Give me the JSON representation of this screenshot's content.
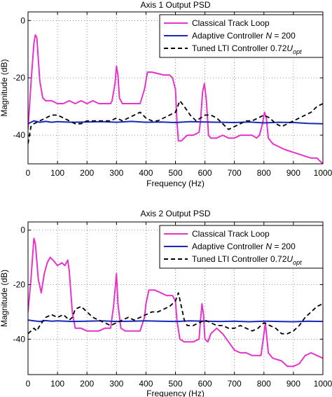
{
  "chart_data": [
    {
      "type": "line",
      "title": "Axis 1 Output PSD",
      "xlabel": "Frequency (Hz)",
      "ylabel": "Magnitude (dB)",
      "xlim": [
        0,
        1000
      ],
      "ylim": [
        -50,
        3
      ],
      "xticks": [
        0,
        100,
        200,
        300,
        400,
        500,
        600,
        700,
        800,
        900,
        1000
      ],
      "yticks": [
        0,
        -20,
        -40
      ],
      "grid": true,
      "legend_position": "top-right",
      "legend": [
        {
          "prefix": "Classical Track Loop",
          "emph": "",
          "mid": "",
          "sub": "",
          "color": "#e633cc",
          "dash": "solid"
        },
        {
          "prefix": "Adaptive Controller ",
          "emph": "N",
          "mid": " = 200",
          "sub": "",
          "color": "#1a2ab8",
          "dash": "solid"
        },
        {
          "prefix": "Tuned LTI Controller 0.72",
          "emph": "U",
          "mid": "",
          "sub": "opt",
          "color": "#000000",
          "dash": "dashed"
        }
      ],
      "series": [
        {
          "name": "Classical Track Loop",
          "color": "#e633cc",
          "dash": "solid",
          "x": [
            0,
            10,
            20,
            25,
            30,
            40,
            50,
            60,
            80,
            100,
            120,
            140,
            160,
            180,
            200,
            220,
            240,
            260,
            280,
            285,
            295,
            300,
            305,
            310,
            320,
            340,
            360,
            380,
            395,
            405,
            420,
            440,
            460,
            480,
            490,
            500,
            505,
            510,
            520,
            540,
            560,
            580,
            585,
            592,
            598,
            605,
            612,
            620,
            640,
            660,
            680,
            700,
            720,
            740,
            760,
            775,
            785,
            795,
            802,
            808,
            815,
            830,
            850,
            870,
            900,
            930,
            960,
            980,
            1000
          ],
          "y": [
            -38,
            -22,
            -8,
            -5,
            -6,
            -21,
            -27,
            -28,
            -28,
            -29,
            -29,
            -28,
            -29,
            -28,
            -29,
            -28,
            -29,
            -29,
            -29,
            -28,
            -22,
            -16,
            -19,
            -27,
            -29,
            -29,
            -29,
            -29,
            -24,
            -18,
            -18,
            -18.5,
            -19,
            -19,
            -20,
            -24,
            -35,
            -42,
            -42,
            -40,
            -40,
            -39,
            -35,
            -25,
            -22,
            -28,
            -40,
            -41,
            -41,
            -40,
            -41,
            -41,
            -40,
            -40,
            -40,
            -41,
            -40,
            -36,
            -32,
            -34,
            -41,
            -43,
            -44,
            -45,
            -46,
            -47,
            -48,
            -48,
            -50
          ]
        },
        {
          "name": "Adaptive Controller N = 200",
          "color": "#1a2ab8",
          "dash": "solid",
          "x": [
            0,
            20,
            40,
            60,
            80,
            100,
            150,
            200,
            250,
            300,
            350,
            400,
            450,
            500,
            550,
            600,
            650,
            700,
            750,
            800,
            850,
            900,
            950,
            1000
          ],
          "y": [
            -36,
            -35,
            -35.5,
            -35.2,
            -35.5,
            -35.3,
            -35.5,
            -35.4,
            -35.3,
            -35.5,
            -35.2,
            -35.5,
            -35.4,
            -35.6,
            -35.3,
            -35.4,
            -35.5,
            -35.6,
            -35.4,
            -35.7,
            -35.5,
            -35.6,
            -35.9,
            -36
          ]
        },
        {
          "name": "Tuned LTI Controller 0.72 Uopt",
          "color": "#000000",
          "dash": "dashed",
          "x": [
            0,
            5,
            10,
            20,
            40,
            60,
            80,
            100,
            120,
            140,
            160,
            180,
            200,
            240,
            280,
            300,
            320,
            340,
            360,
            380,
            400,
            420,
            440,
            460,
            480,
            500,
            515,
            530,
            550,
            570,
            600,
            620,
            640,
            660,
            680,
            700,
            720,
            740,
            760,
            780,
            800,
            820,
            840,
            860,
            880,
            900,
            920,
            940,
            960,
            980,
            1000
          ],
          "y": [
            -43,
            -40,
            -37,
            -36,
            -35,
            -34,
            -33,
            -33,
            -34,
            -35,
            -36,
            -36,
            -35,
            -35,
            -35,
            -34,
            -35,
            -34,
            -33,
            -32,
            -34,
            -35,
            -35,
            -34,
            -33,
            -32,
            -28,
            -30,
            -33,
            -35,
            -33,
            -33,
            -34,
            -36,
            -38,
            -37,
            -36,
            -35,
            -35,
            -34,
            -33,
            -34,
            -36,
            -37,
            -36,
            -35,
            -34,
            -33,
            -32,
            -30,
            -29
          ]
        }
      ]
    },
    {
      "type": "line",
      "title": "Axis 2 Output PSD",
      "xlabel": "Frequency (Hz)",
      "ylabel": "Magnitude (dB)",
      "xlim": [
        0,
        1000
      ],
      "ylim": [
        -53,
        3
      ],
      "xticks": [
        0,
        100,
        200,
        300,
        400,
        500,
        600,
        700,
        800,
        900,
        1000
      ],
      "yticks": [
        0,
        -20,
        -40
      ],
      "grid": true,
      "legend_position": "top-right",
      "legend": [
        {
          "prefix": "Classical Track Loop",
          "emph": "",
          "mid": "",
          "sub": "",
          "color": "#e633cc",
          "dash": "solid"
        },
        {
          "prefix": "Adaptive Controller ",
          "emph": "N",
          "mid": " = 200",
          "sub": "",
          "color": "#1a2ab8",
          "dash": "solid"
        },
        {
          "prefix": "Tuned LTI Controller  0.72",
          "emph": "U",
          "mid": "",
          "sub": "opt",
          "color": "#000000",
          "dash": "dashed"
        }
      ],
      "series": [
        {
          "name": "Classical Track Loop",
          "color": "#e633cc",
          "dash": "solid",
          "x": [
            0,
            10,
            20,
            25,
            35,
            45,
            55,
            65,
            75,
            85,
            100,
            115,
            125,
            135,
            140,
            150,
            160,
            180,
            200,
            220,
            240,
            260,
            280,
            290,
            300,
            305,
            315,
            330,
            350,
            380,
            395,
            400,
            410,
            430,
            450,
            470,
            490,
            500,
            505,
            515,
            530,
            560,
            580,
            585,
            590,
            595,
            600,
            610,
            620,
            640,
            660,
            680,
            700,
            720,
            740,
            760,
            780,
            790,
            800,
            805,
            815,
            830,
            860,
            880,
            900,
            920,
            940,
            960,
            980,
            1000
          ],
          "y": [
            -30,
            -18,
            -3,
            -5,
            -18,
            -23,
            -16,
            -12,
            -10,
            -11,
            -13,
            -12,
            -13,
            -11,
            -15,
            -30,
            -36,
            -36,
            -37,
            -37,
            -37,
            -36,
            -36,
            -28,
            -16,
            -27,
            -36,
            -37,
            -37,
            -37,
            -32,
            -27,
            -22,
            -22,
            -23,
            -24,
            -24,
            -26,
            -33,
            -40,
            -41,
            -41,
            -40,
            -33,
            -27,
            -31,
            -40,
            -41,
            -38,
            -36,
            -38,
            -41,
            -44,
            -45,
            -45,
            -46,
            -46,
            -46,
            -38,
            -34,
            -45,
            -47,
            -48,
            -50,
            -50,
            -49,
            -46,
            -45,
            -46,
            -47
          ]
        },
        {
          "name": "Adaptive Controller N = 200",
          "color": "#1a2ab8",
          "dash": "solid",
          "x": [
            0,
            20,
            40,
            60,
            80,
            100,
            150,
            200,
            250,
            300,
            350,
            400,
            450,
            500,
            550,
            600,
            650,
            700,
            750,
            800,
            850,
            900,
            950,
            1000
          ],
          "y": [
            -33,
            -33.3,
            -33.5,
            -33.2,
            -33.4,
            -33.3,
            -33.5,
            -33.4,
            -33.3,
            -33.5,
            -33.4,
            -33.3,
            -33.4,
            -33.5,
            -33.3,
            -33.4,
            -33.5,
            -33.4,
            -33.6,
            -33.4,
            -33.5,
            -33.6,
            -33.4,
            -33.5
          ]
        },
        {
          "name": "Tuned LTI Controller 0.72 Uopt",
          "color": "#000000",
          "dash": "dashed",
          "x": [
            0,
            10,
            20,
            30,
            40,
            60,
            80,
            100,
            120,
            140,
            150,
            160,
            180,
            200,
            220,
            240,
            260,
            280,
            300,
            320,
            340,
            360,
            380,
            400,
            420,
            440,
            460,
            480,
            500,
            510,
            520,
            530,
            540,
            560,
            580,
            600,
            620,
            640,
            660,
            680,
            700,
            720,
            740,
            760,
            780,
            800,
            820,
            840,
            860,
            880,
            900,
            920,
            940,
            960,
            980,
            1000
          ],
          "y": [
            -38,
            -37,
            -36,
            -37,
            -35,
            -32,
            -31,
            -32,
            -31,
            -33,
            -32,
            -29,
            -28,
            -30,
            -32,
            -33,
            -34,
            -35,
            -34,
            -33,
            -32,
            -33,
            -32,
            -31,
            -30,
            -30,
            -29,
            -28,
            -26,
            -23,
            -28,
            -33,
            -35,
            -35,
            -34,
            -33,
            -34,
            -35,
            -35,
            -36,
            -36,
            -35,
            -36,
            -37,
            -36,
            -34,
            -35,
            -36,
            -38,
            -38,
            -37,
            -35,
            -32,
            -30,
            -28,
            -27
          ]
        }
      ]
    }
  ]
}
